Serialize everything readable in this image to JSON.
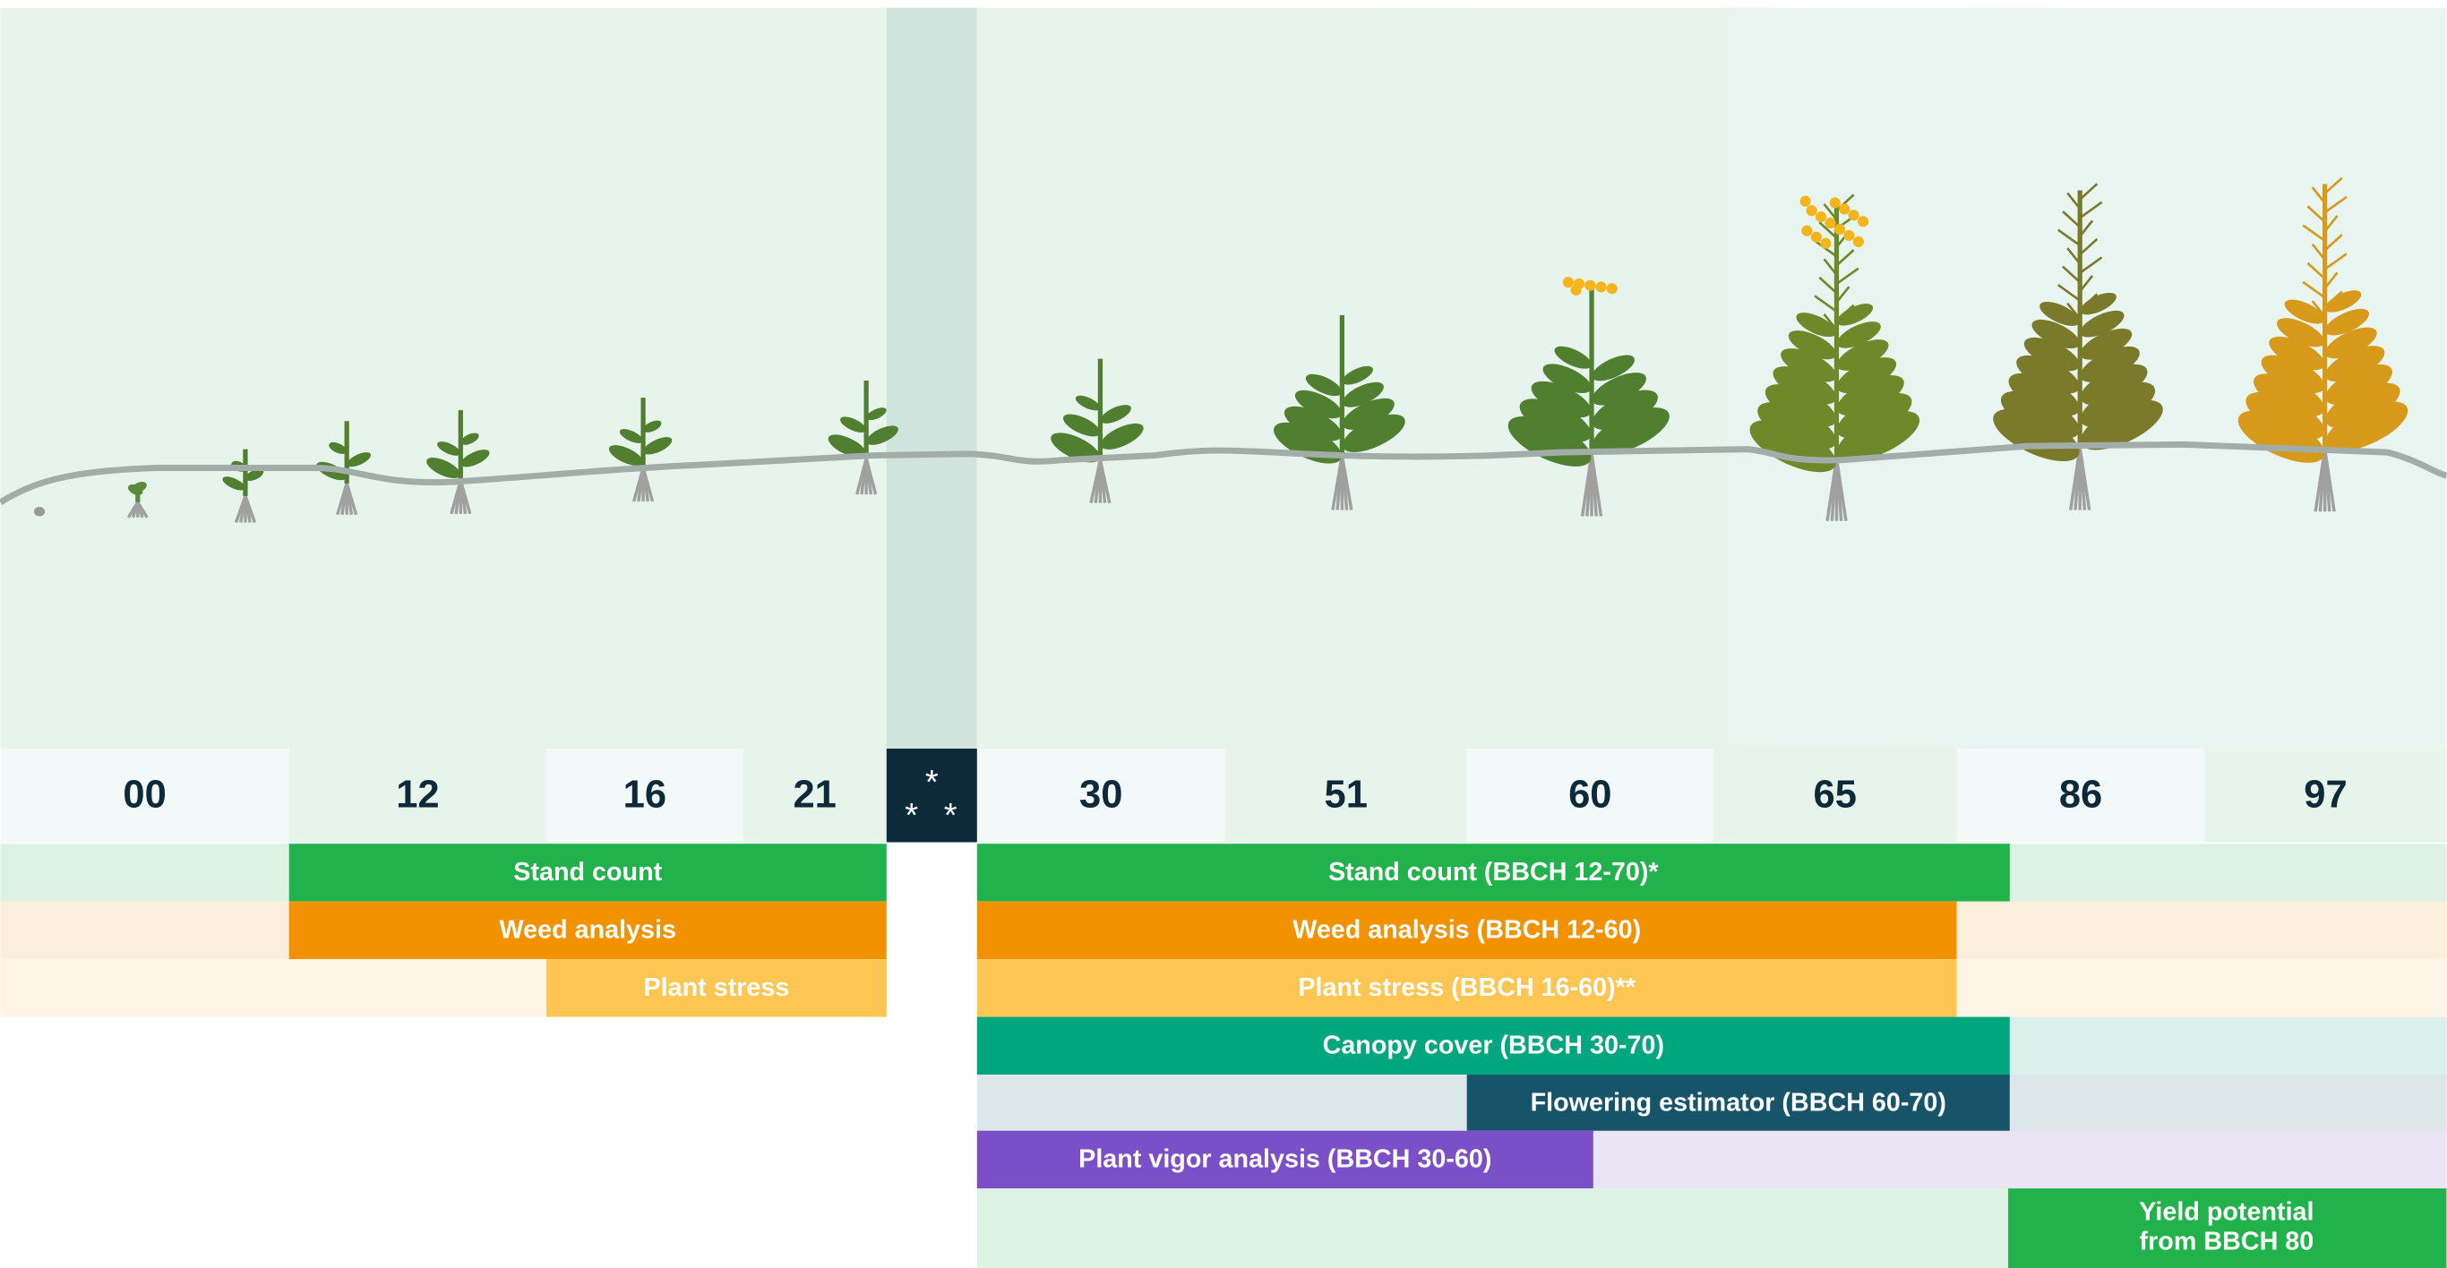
{
  "stages": [
    "00",
    "12",
    "16",
    "21",
    "30",
    "51",
    "60",
    "65",
    "86",
    "97"
  ],
  "separator": [
    "*",
    "*",
    "*"
  ],
  "before_rows": [
    "Stand count",
    "Weed analysis",
    "Plant stress"
  ],
  "after_rows": [
    "Stand count (BBCH 12-70)*",
    "Weed analysis (BBCH 12-60)",
    "Plant stress (BBCH 16-60)**",
    "Canopy cover (BBCH 30-70)",
    "Flowering estimator (BBCH 60-70)",
    "Plant vigor analysis (BBCH 30-60)"
  ],
  "yield": [
    "Yield potential",
    "from BBCH 80"
  ]
}
